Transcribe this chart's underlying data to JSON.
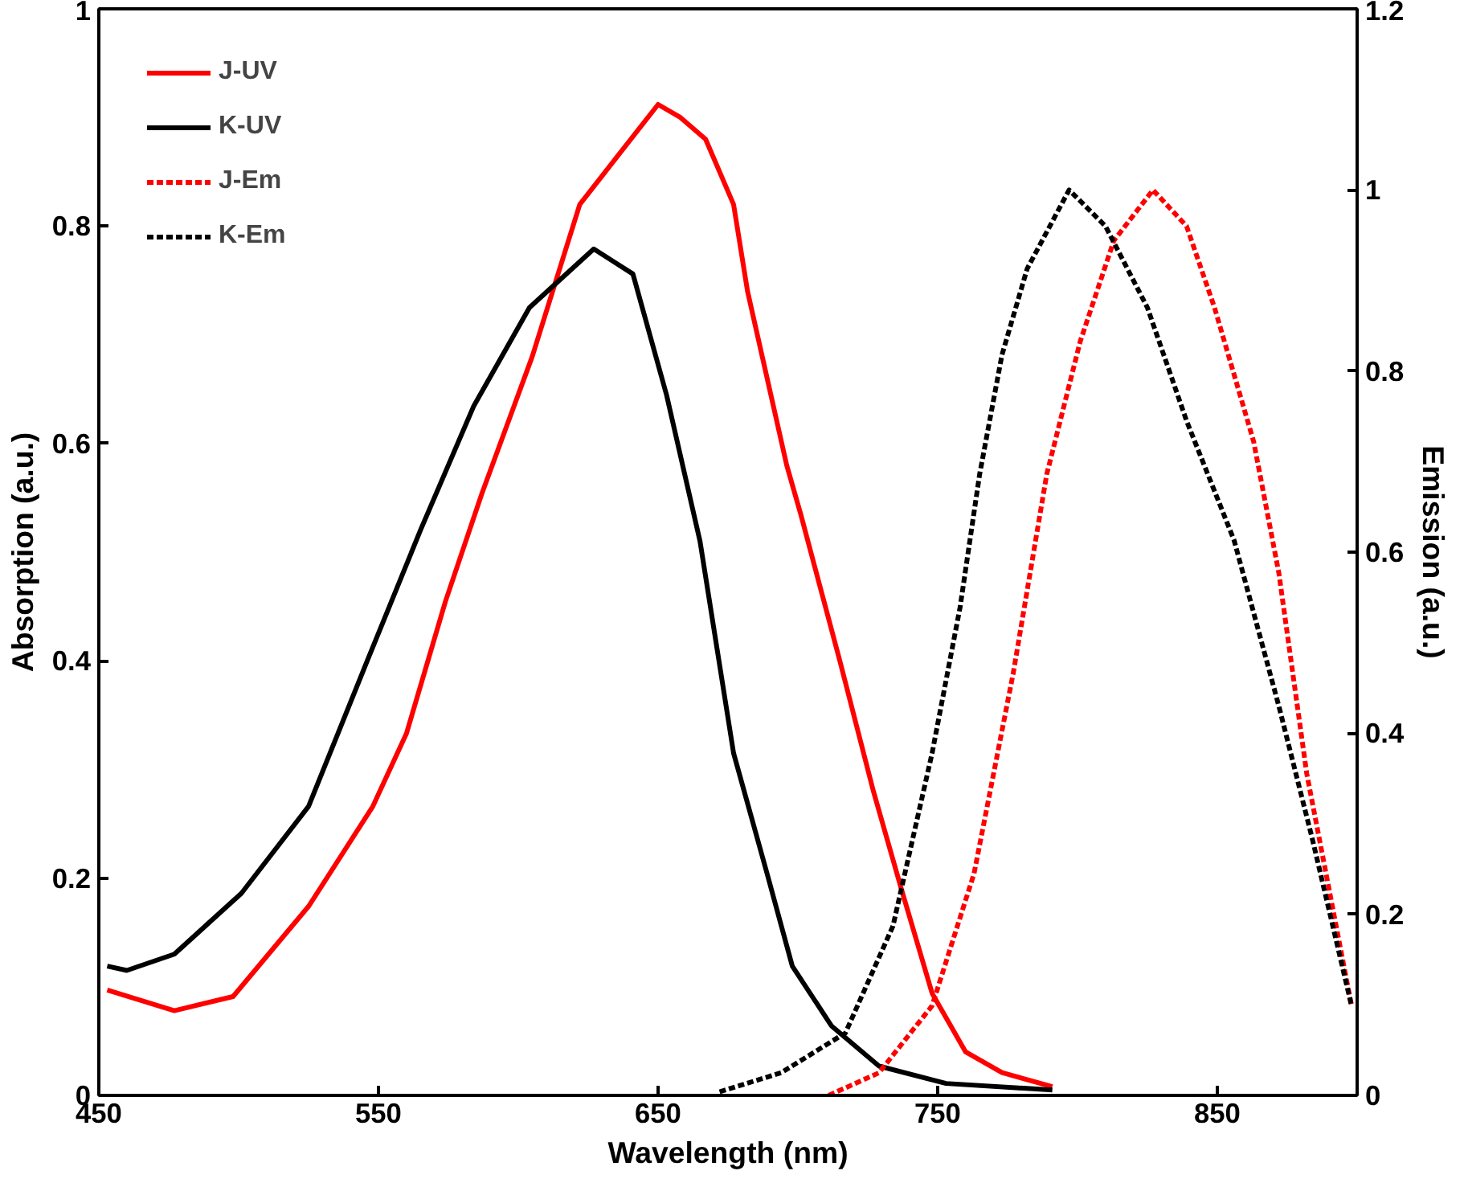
{
  "chart_data": {
    "type": "line",
    "xlabel": "Wavelength (nm)",
    "ylabel": "Absorption (a.u.)",
    "y2label": "Emission (a.u.)",
    "xlim": [
      450,
      900
    ],
    "xticks": [
      450,
      550,
      650,
      750,
      850
    ],
    "ylim": [
      0,
      1
    ],
    "yticks": [
      0,
      0.2,
      0.4,
      0.6,
      0.8,
      1
    ],
    "y2lim": [
      0,
      1.2
    ],
    "y2ticks": [
      0,
      0.2,
      0.4,
      0.6,
      0.8,
      1,
      1.2
    ],
    "grid": false,
    "legend": "top left",
    "marker": "none",
    "series": [
      {
        "name": "J-UV",
        "color": "#ff0000",
        "line_style": "solid",
        "x": [
          453,
          477,
          498,
          525,
          548,
          560,
          574,
          587,
          605,
          622,
          650,
          658,
          667,
          677,
          682,
          696,
          701,
          715,
          727,
          737,
          748,
          760,
          773,
          791
        ],
        "values": [
          0.097,
          0.078,
          0.091,
          0.174,
          0.266,
          0.333,
          0.455,
          0.554,
          0.68,
          0.82,
          0.912,
          0.9,
          0.88,
          0.82,
          0.74,
          0.58,
          0.535,
          0.4,
          0.28,
          0.19,
          0.094,
          0.04,
          0.021,
          0.008
        ]
      },
      {
        "name": "K-UV",
        "color": "#000000",
        "line_style": "solid",
        "x": [
          453,
          460,
          477,
          501,
          525,
          546,
          565,
          584,
          604,
          627,
          641,
          653,
          665,
          677,
          689,
          698,
          712,
          729,
          753,
          791
        ],
        "values": [
          0.119,
          0.115,
          0.13,
          0.186,
          0.266,
          0.4,
          0.52,
          0.634,
          0.725,
          0.779,
          0.756,
          0.645,
          0.51,
          0.315,
          0.204,
          0.119,
          0.064,
          0.027,
          0.011,
          0.005
        ]
      },
      {
        "name": "J-Em",
        "color": "#ff0000",
        "line_style": "dashed",
        "axis": "y2",
        "x": [
          711,
          729,
          748,
          763,
          777,
          789,
          801,
          813,
          827,
          839,
          849,
          863,
          872,
          882,
          898
        ],
        "values": [
          0.0,
          0.025,
          0.099,
          0.245,
          0.466,
          0.686,
          0.833,
          0.944,
          1.0,
          0.96,
          0.87,
          0.722,
          0.577,
          0.355,
          0.099
        ]
      },
      {
        "name": "K-Em",
        "color": "#000000",
        "line_style": "dashed",
        "axis": "y2",
        "x": [
          672,
          694,
          717,
          734,
          748,
          758,
          765,
          773,
          782,
          797,
          810,
          825,
          839,
          856,
          872,
          884,
          898
        ],
        "values": [
          0.004,
          0.025,
          0.069,
          0.187,
          0.378,
          0.539,
          0.686,
          0.818,
          0.913,
          1.0,
          0.96,
          0.87,
          0.745,
          0.613,
          0.43,
          0.283,
          0.099
        ]
      }
    ]
  }
}
